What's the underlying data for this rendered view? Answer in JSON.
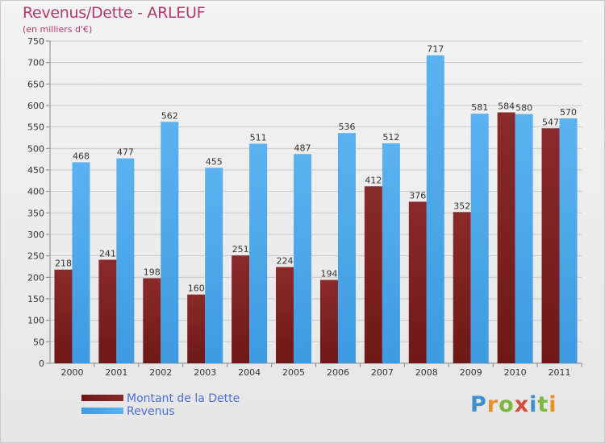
{
  "title": "Revenus/Dette - ARLEUF",
  "unit_label": "(en milliers d'€)",
  "colors": {
    "debt": "#6e1818",
    "revenue": "#3d9be0",
    "title": "#b23a6a",
    "legend_text": "#4a6fd6"
  },
  "logo": {
    "text": "Proxiti"
  },
  "chart_data": {
    "type": "bar",
    "categories": [
      "2000",
      "2001",
      "2002",
      "2003",
      "2004",
      "2005",
      "2006",
      "2007",
      "2008",
      "2009",
      "2010",
      "2011"
    ],
    "series": [
      {
        "name": "Montant de la Dette",
        "values": [
          218,
          241,
          198,
          160,
          251,
          224,
          194,
          412,
          376,
          352,
          584,
          547
        ],
        "labels": [
          "218",
          "241",
          "198",
          "160",
          "251",
          "224",
          "194",
          "412",
          "376",
          "352",
          "584",
          "547"
        ]
      },
      {
        "name": "Revenus",
        "values": [
          468,
          477,
          562,
          455,
          511,
          487,
          536,
          512,
          717,
          581,
          580,
          570
        ],
        "labels": [
          "468",
          "477",
          "562",
          "455",
          "511",
          "487",
          "536",
          "512",
          "717",
          "581",
          "580",
          "570"
        ]
      }
    ],
    "ylim": [
      0,
      750
    ],
    "yticks": [
      "0",
      "50",
      "100",
      "150",
      "200",
      "250",
      "300",
      "350",
      "400",
      "450",
      "500",
      "550",
      "600",
      "650",
      "700",
      "750"
    ],
    "grid": true,
    "legend_position": "bottom-left"
  }
}
